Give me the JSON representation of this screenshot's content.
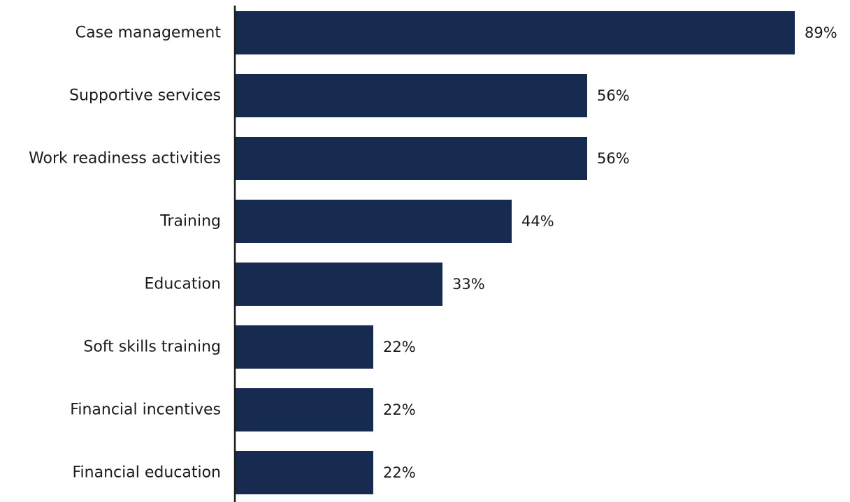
{
  "chart_data": {
    "type": "bar",
    "orientation": "horizontal",
    "categories": [
      "Case management",
      "Supportive services",
      "Work readiness activities",
      "Training",
      "Education",
      "Soft skills training",
      "Financial incentives",
      "Financial education"
    ],
    "values": [
      89,
      56,
      56,
      44,
      33,
      22,
      22,
      22
    ],
    "data_labels": [
      "89%",
      "56%",
      "56%",
      "44%",
      "33%",
      "22%",
      "22%",
      "22%"
    ],
    "title": "",
    "xlabel": "",
    "ylabel": "",
    "xlim": [
      0,
      100
    ],
    "grid": false,
    "legend": "none",
    "bar_color": "#172a4f",
    "axis_color": "#1a1a1a"
  }
}
